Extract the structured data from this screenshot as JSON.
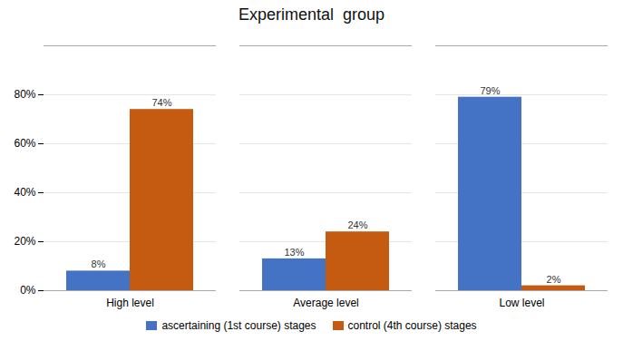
{
  "chart_data": {
    "type": "bar",
    "title": "Experimental  group",
    "categories": [
      "High level",
      "Average level",
      "Low level"
    ],
    "series": [
      {
        "name": "ascertaining (1st course) stages",
        "color": "#4472C4",
        "values": [
          8,
          13,
          79
        ],
        "value_labels": [
          "8%",
          "13%",
          "79%"
        ]
      },
      {
        "name": "control (4th course) stages",
        "color": "#C55A11",
        "values": [
          74,
          24,
          2
        ],
        "value_labels": [
          "74%",
          "24%",
          "2%"
        ]
      }
    ],
    "ylim": [
      0,
      100
    ],
    "yticks": [
      {
        "value": 0,
        "label": "0%"
      },
      {
        "value": 20,
        "label": "20%"
      },
      {
        "value": 40,
        "label": "40%"
      },
      {
        "value": 60,
        "label": "60%"
      },
      {
        "value": 80,
        "label": "80%"
      }
    ],
    "grid": true,
    "legend": "bottom",
    "data_labels": true
  }
}
